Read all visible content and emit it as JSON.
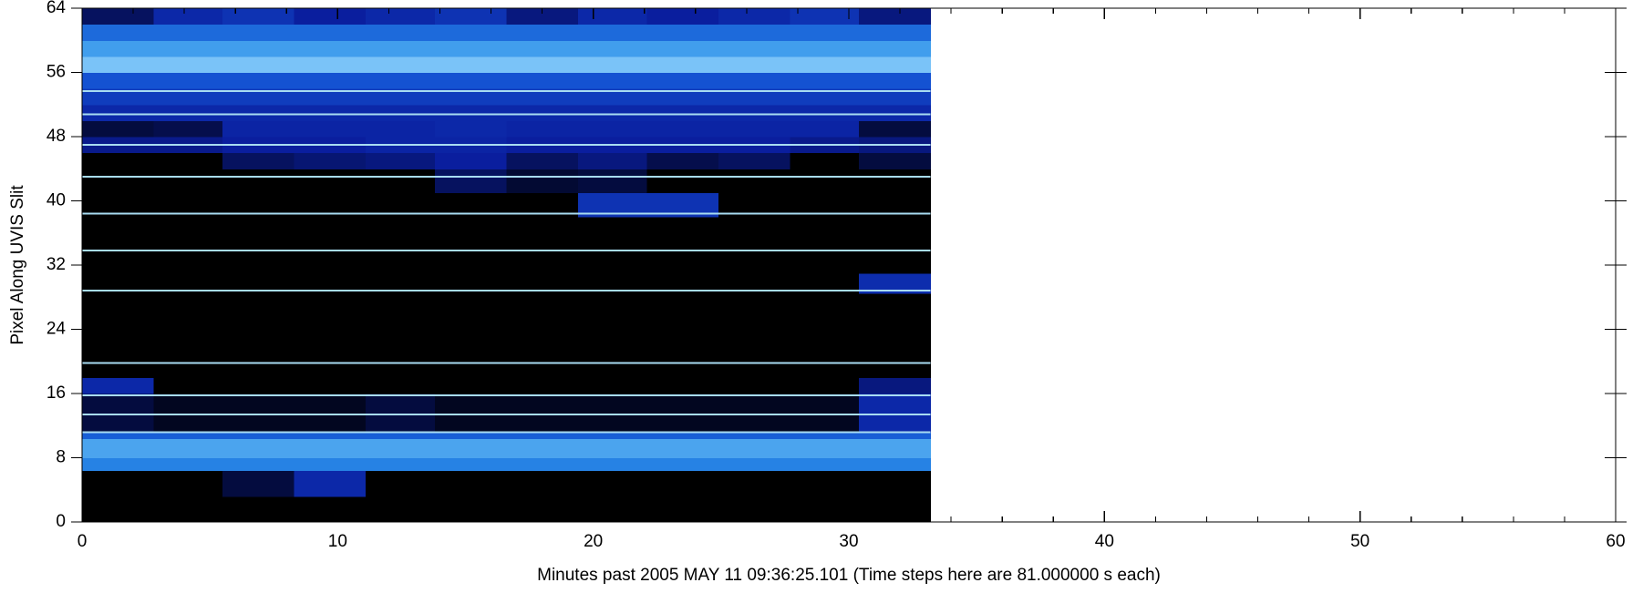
{
  "chart_data": {
    "type": "heatmap",
    "xlabel": "Minutes past 2005 MAY 11 09:36:25.101 (Time steps here are 81.000000 s each)",
    "ylabel": "Pixel Along UVIS Slit",
    "xlim": [
      0,
      60
    ],
    "ylim": [
      0,
      64
    ],
    "xticks": [
      0,
      10,
      20,
      30,
      40,
      50,
      60
    ],
    "xminorticks": [
      2,
      4,
      6,
      8,
      12,
      14,
      16,
      18,
      22,
      24,
      26,
      28,
      32,
      34,
      36,
      38,
      42,
      44,
      46,
      48,
      52,
      54,
      56,
      58
    ],
    "yticks": [
      0,
      8,
      16,
      24,
      32,
      40,
      48,
      56,
      64
    ],
    "x_edges": [
      0,
      2.8,
      5.5,
      8.3,
      11.1,
      13.8,
      16.6,
      19.4,
      22.1,
      24.9,
      27.7,
      30.4,
      33.2
    ],
    "y_edges": [
      0,
      3.2,
      6.4,
      8,
      10.4,
      11.2,
      16,
      18,
      28.5,
      31,
      38,
      41,
      44,
      46,
      48,
      50,
      52,
      54,
      56,
      58,
      60,
      62,
      64
    ],
    "z": [
      [
        0,
        0,
        0,
        0,
        0,
        0,
        0,
        0,
        0,
        0,
        0,
        0
      ],
      [
        0,
        0,
        0.1,
        0.3,
        0,
        0,
        0,
        0,
        0,
        0,
        0,
        0
      ],
      [
        0.7,
        0.7,
        0.7,
        0.7,
        0.7,
        0.7,
        0.7,
        0.7,
        0.7,
        0.7,
        0.7,
        0.7
      ],
      [
        0.82,
        0.82,
        0.82,
        0.82,
        0.82,
        0.82,
        0.82,
        0.82,
        0.82,
        0.82,
        0.82,
        0.82
      ],
      [
        0.55,
        0.55,
        0.55,
        0.55,
        0.55,
        0.55,
        0.55,
        0.55,
        0.55,
        0.55,
        0.55,
        0.55
      ],
      [
        0.1,
        0.05,
        0.05,
        0.05,
        0.1,
        0.05,
        0.05,
        0.05,
        0.05,
        0.05,
        0.05,
        0.3
      ],
      [
        0.3,
        0,
        0,
        0,
        0,
        0,
        0,
        0,
        0,
        0,
        0,
        0.2
      ],
      [
        0,
        0,
        0,
        0,
        0,
        0,
        0,
        0,
        0,
        0,
        0,
        0
      ],
      [
        0,
        0,
        0,
        0,
        0,
        0,
        0,
        0,
        0,
        0,
        0,
        0.32
      ],
      [
        0,
        0,
        0,
        0,
        0,
        0,
        0,
        0,
        0,
        0,
        0,
        0
      ],
      [
        0,
        0,
        0,
        0,
        0,
        0,
        0,
        0.35,
        0.35,
        0,
        0,
        0
      ],
      [
        0,
        0,
        0,
        0,
        0,
        0.15,
        0.08,
        0.1,
        0,
        0,
        0,
        0
      ],
      [
        0,
        0,
        0.15,
        0.18,
        0.2,
        0.25,
        0.15,
        0.2,
        0.12,
        0.15,
        0,
        0.1
      ],
      [
        0.22,
        0.22,
        0.25,
        0.25,
        0.28,
        0.28,
        0.25,
        0.25,
        0.25,
        0.25,
        0.22,
        0.2
      ],
      [
        0.1,
        0.12,
        0.28,
        0.28,
        0.28,
        0.3,
        0.28,
        0.28,
        0.28,
        0.28,
        0.28,
        0.1
      ],
      [
        0.3,
        0.3,
        0.3,
        0.3,
        0.3,
        0.3,
        0.3,
        0.3,
        0.3,
        0.3,
        0.3,
        0.3
      ],
      [
        0.4,
        0.4,
        0.4,
        0.4,
        0.4,
        0.4,
        0.4,
        0.4,
        0.4,
        0.4,
        0.4,
        0.4
      ],
      [
        0.5,
        0.5,
        0.5,
        0.5,
        0.5,
        0.5,
        0.5,
        0.5,
        0.5,
        0.5,
        0.5,
        0.5
      ],
      [
        0.92,
        0.92,
        0.92,
        0.92,
        0.92,
        0.92,
        0.92,
        0.92,
        0.92,
        0.92,
        0.92,
        0.92
      ],
      [
        0.8,
        0.8,
        0.8,
        0.8,
        0.8,
        0.8,
        0.8,
        0.8,
        0.8,
        0.8,
        0.8,
        0.8
      ],
      [
        0.6,
        0.6,
        0.6,
        0.6,
        0.6,
        0.6,
        0.6,
        0.6,
        0.6,
        0.6,
        0.6,
        0.6
      ],
      [
        0.15,
        0.3,
        0.35,
        0.25,
        0.3,
        0.35,
        0.2,
        0.3,
        0.25,
        0.3,
        0.35,
        0.2
      ]
    ],
    "lines": [
      11.2,
      13.4,
      15.8,
      19.8,
      28.8,
      33.8,
      38.4,
      43,
      47,
      50.8,
      53.7
    ],
    "line_color": "#a8dcf2",
    "colormap": [
      "#000000",
      "#0a1e9e",
      "#1452d2",
      "#2a8ee8",
      "#9fdcff"
    ]
  }
}
